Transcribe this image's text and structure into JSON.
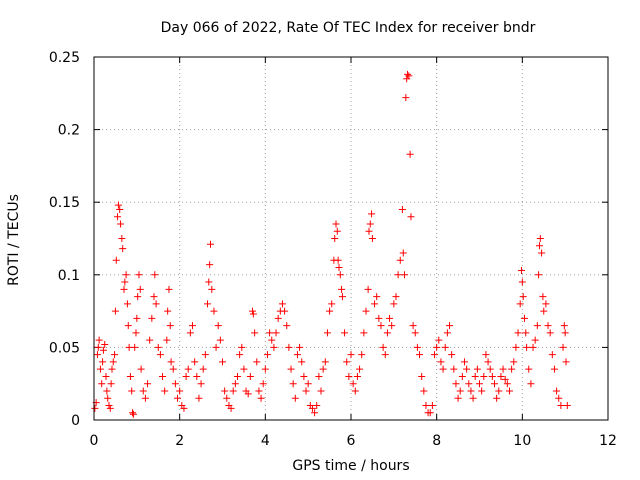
{
  "chart_data": {
    "type": "scatter",
    "title": "Day 066 of 2022, Rate Of TEC Index for receiver bndr",
    "xlabel": "GPS time / hours",
    "ylabel": "ROTI / TECUs",
    "xlim": [
      0,
      12
    ],
    "ylim": [
      0,
      0.25
    ],
    "x_ticks": [
      "0",
      "2",
      "4",
      "6",
      "8",
      "10",
      "12"
    ],
    "y_ticks": [
      "0",
      "0.05",
      "0.1",
      "0.15",
      "0.2",
      "0.25"
    ],
    "grid": true,
    "marker": "+",
    "color": "#ff0000",
    "series": [
      {
        "points": [
          [
            0.02,
            0.008
          ],
          [
            0.05,
            0.012
          ],
          [
            0.08,
            0.045
          ],
          [
            0.1,
            0.05
          ],
          [
            0.12,
            0.055
          ],
          [
            0.15,
            0.035
          ],
          [
            0.18,
            0.025
          ],
          [
            0.2,
            0.04
          ],
          [
            0.22,
            0.048
          ],
          [
            0.25,
            0.052
          ],
          [
            0.28,
            0.03
          ],
          [
            0.3,
            0.02
          ],
          [
            0.32,
            0.015
          ],
          [
            0.35,
            0.01
          ],
          [
            0.38,
            0.008
          ],
          [
            0.4,
            0.025
          ],
          [
            0.42,
            0.035
          ],
          [
            0.45,
            0.04
          ],
          [
            0.48,
            0.045
          ],
          [
            0.5,
            0.075
          ],
          [
            0.52,
            0.11
          ],
          [
            0.55,
            0.14
          ],
          [
            0.57,
            0.148
          ],
          [
            0.6,
            0.145
          ],
          [
            0.62,
            0.135
          ],
          [
            0.65,
            0.125
          ],
          [
            0.67,
            0.118
          ],
          [
            0.7,
            0.09
          ],
          [
            0.72,
            0.095
          ],
          [
            0.75,
            0.1
          ],
          [
            0.78,
            0.08
          ],
          [
            0.8,
            0.065
          ],
          [
            0.82,
            0.05
          ],
          [
            0.85,
            0.03
          ],
          [
            0.88,
            0.02
          ],
          [
            0.9,
            0.005
          ],
          [
            0.92,
            0.004
          ],
          [
            0.95,
            0.05
          ],
          [
            0.98,
            0.06
          ],
          [
            1.0,
            0.07
          ],
          [
            1.02,
            0.085
          ],
          [
            1.05,
            0.1
          ],
          [
            1.08,
            0.09
          ],
          [
            1.1,
            0.035
          ],
          [
            1.15,
            0.02
          ],
          [
            1.2,
            0.015
          ],
          [
            1.25,
            0.025
          ],
          [
            1.3,
            0.055
          ],
          [
            1.35,
            0.07
          ],
          [
            1.4,
            0.085
          ],
          [
            1.42,
            0.1
          ],
          [
            1.45,
            0.08
          ],
          [
            1.5,
            0.05
          ],
          [
            1.55,
            0.045
          ],
          [
            1.6,
            0.03
          ],
          [
            1.65,
            0.02
          ],
          [
            1.7,
            0.055
          ],
          [
            1.72,
            0.075
          ],
          [
            1.75,
            0.09
          ],
          [
            1.78,
            0.065
          ],
          [
            1.8,
            0.04
          ],
          [
            1.85,
            0.035
          ],
          [
            1.9,
            0.025
          ],
          [
            1.95,
            0.015
          ],
          [
            2.0,
            0.02
          ],
          [
            2.05,
            0.01
          ],
          [
            2.1,
            0.008
          ],
          [
            2.15,
            0.03
          ],
          [
            2.2,
            0.035
          ],
          [
            2.25,
            0.06
          ],
          [
            2.3,
            0.065
          ],
          [
            2.35,
            0.04
          ],
          [
            2.4,
            0.03
          ],
          [
            2.45,
            0.015
          ],
          [
            2.5,
            0.025
          ],
          [
            2.55,
            0.035
          ],
          [
            2.6,
            0.045
          ],
          [
            2.65,
            0.08
          ],
          [
            2.68,
            0.095
          ],
          [
            2.7,
            0.107
          ],
          [
            2.72,
            0.121
          ],
          [
            2.75,
            0.09
          ],
          [
            2.8,
            0.075
          ],
          [
            2.85,
            0.05
          ],
          [
            2.9,
            0.065
          ],
          [
            2.95,
            0.055
          ],
          [
            3.0,
            0.04
          ],
          [
            3.05,
            0.02
          ],
          [
            3.1,
            0.015
          ],
          [
            3.15,
            0.01
          ],
          [
            3.2,
            0.008
          ],
          [
            3.25,
            0.02
          ],
          [
            3.3,
            0.025
          ],
          [
            3.35,
            0.03
          ],
          [
            3.4,
            0.045
          ],
          [
            3.45,
            0.05
          ],
          [
            3.5,
            0.035
          ],
          [
            3.55,
            0.02
          ],
          [
            3.6,
            0.018
          ],
          [
            3.65,
            0.03
          ],
          [
            3.7,
            0.075
          ],
          [
            3.72,
            0.073
          ],
          [
            3.75,
            0.06
          ],
          [
            3.8,
            0.04
          ],
          [
            3.85,
            0.02
          ],
          [
            3.9,
            0.015
          ],
          [
            3.95,
            0.025
          ],
          [
            4.0,
            0.035
          ],
          [
            4.05,
            0.045
          ],
          [
            4.1,
            0.06
          ],
          [
            4.15,
            0.055
          ],
          [
            4.2,
            0.05
          ],
          [
            4.25,
            0.06
          ],
          [
            4.3,
            0.07
          ],
          [
            4.35,
            0.075
          ],
          [
            4.4,
            0.08
          ],
          [
            4.45,
            0.075
          ],
          [
            4.5,
            0.065
          ],
          [
            4.55,
            0.05
          ],
          [
            4.6,
            0.035
          ],
          [
            4.65,
            0.025
          ],
          [
            4.7,
            0.015
          ],
          [
            4.75,
            0.045
          ],
          [
            4.8,
            0.05
          ],
          [
            4.85,
            0.04
          ],
          [
            4.9,
            0.03
          ],
          [
            4.95,
            0.02
          ],
          [
            5.0,
            0.025
          ],
          [
            5.05,
            0.01
          ],
          [
            5.1,
            0.008
          ],
          [
            5.15,
            0.005
          ],
          [
            5.2,
            0.01
          ],
          [
            5.25,
            0.03
          ],
          [
            5.3,
            0.02
          ],
          [
            5.35,
            0.035
          ],
          [
            5.4,
            0.04
          ],
          [
            5.45,
            0.06
          ],
          [
            5.5,
            0.075
          ],
          [
            5.55,
            0.08
          ],
          [
            5.6,
            0.11
          ],
          [
            5.62,
            0.125
          ],
          [
            5.65,
            0.135
          ],
          [
            5.68,
            0.13
          ],
          [
            5.7,
            0.11
          ],
          [
            5.72,
            0.105
          ],
          [
            5.75,
            0.1
          ],
          [
            5.78,
            0.09
          ],
          [
            5.8,
            0.085
          ],
          [
            5.85,
            0.06
          ],
          [
            5.9,
            0.04
          ],
          [
            5.95,
            0.03
          ],
          [
            6.0,
            0.045
          ],
          [
            6.05,
            0.025
          ],
          [
            6.1,
            0.02
          ],
          [
            6.15,
            0.03
          ],
          [
            6.2,
            0.035
          ],
          [
            6.25,
            0.045
          ],
          [
            6.3,
            0.06
          ],
          [
            6.35,
            0.075
          ],
          [
            6.4,
            0.09
          ],
          [
            6.42,
            0.13
          ],
          [
            6.45,
            0.135
          ],
          [
            6.48,
            0.142
          ],
          [
            6.5,
            0.125
          ],
          [
            6.55,
            0.08
          ],
          [
            6.6,
            0.085
          ],
          [
            6.65,
            0.07
          ],
          [
            6.7,
            0.065
          ],
          [
            6.75,
            0.05
          ],
          [
            6.8,
            0.045
          ],
          [
            6.85,
            0.06
          ],
          [
            6.9,
            0.07
          ],
          [
            6.95,
            0.065
          ],
          [
            7.0,
            0.08
          ],
          [
            7.05,
            0.085
          ],
          [
            7.1,
            0.1
          ],
          [
            7.15,
            0.11
          ],
          [
            7.2,
            0.145
          ],
          [
            7.22,
            0.115
          ],
          [
            7.25,
            0.1
          ],
          [
            7.28,
            0.222
          ],
          [
            7.3,
            0.235
          ],
          [
            7.32,
            0.238
          ],
          [
            7.35,
            0.237
          ],
          [
            7.38,
            0.183
          ],
          [
            7.4,
            0.14
          ],
          [
            7.45,
            0.065
          ],
          [
            7.5,
            0.06
          ],
          [
            7.55,
            0.05
          ],
          [
            7.6,
            0.045
          ],
          [
            7.65,
            0.03
          ],
          [
            7.7,
            0.02
          ],
          [
            7.75,
            0.01
          ],
          [
            7.8,
            0.005
          ],
          [
            7.85,
            0.005
          ],
          [
            7.9,
            0.01
          ],
          [
            7.95,
            0.045
          ],
          [
            8.0,
            0.05
          ],
          [
            8.05,
            0.055
          ],
          [
            8.1,
            0.04
          ],
          [
            8.15,
            0.035
          ],
          [
            8.2,
            0.05
          ],
          [
            8.25,
            0.06
          ],
          [
            8.3,
            0.065
          ],
          [
            8.35,
            0.045
          ],
          [
            8.4,
            0.035
          ],
          [
            8.45,
            0.025
          ],
          [
            8.5,
            0.015
          ],
          [
            8.55,
            0.02
          ],
          [
            8.6,
            0.03
          ],
          [
            8.65,
            0.04
          ],
          [
            8.7,
            0.035
          ],
          [
            8.75,
            0.025
          ],
          [
            8.8,
            0.02
          ],
          [
            8.85,
            0.015
          ],
          [
            8.9,
            0.03
          ],
          [
            8.95,
            0.035
          ],
          [
            9.0,
            0.025
          ],
          [
            9.05,
            0.02
          ],
          [
            9.1,
            0.03
          ],
          [
            9.15,
            0.045
          ],
          [
            9.2,
            0.04
          ],
          [
            9.25,
            0.035
          ],
          [
            9.3,
            0.03
          ],
          [
            9.35,
            0.025
          ],
          [
            9.4,
            0.015
          ],
          [
            9.45,
            0.02
          ],
          [
            9.5,
            0.03
          ],
          [
            9.55,
            0.035
          ],
          [
            9.6,
            0.028
          ],
          [
            9.65,
            0.025
          ],
          [
            9.7,
            0.02
          ],
          [
            9.75,
            0.035
          ],
          [
            9.8,
            0.04
          ],
          [
            9.85,
            0.05
          ],
          [
            9.9,
            0.06
          ],
          [
            9.95,
            0.08
          ],
          [
            9.98,
            0.103
          ],
          [
            10.0,
            0.095
          ],
          [
            10.02,
            0.085
          ],
          [
            10.05,
            0.07
          ],
          [
            10.08,
            0.06
          ],
          [
            10.1,
            0.05
          ],
          [
            10.15,
            0.035
          ],
          [
            10.2,
            0.025
          ],
          [
            10.25,
            0.05
          ],
          [
            10.3,
            0.055
          ],
          [
            10.35,
            0.065
          ],
          [
            10.38,
            0.1
          ],
          [
            10.4,
            0.12
          ],
          [
            10.42,
            0.125
          ],
          [
            10.45,
            0.115
          ],
          [
            10.48,
            0.085
          ],
          [
            10.5,
            0.075
          ],
          [
            10.55,
            0.08
          ],
          [
            10.6,
            0.065
          ],
          [
            10.65,
            0.06
          ],
          [
            10.7,
            0.045
          ],
          [
            10.75,
            0.035
          ],
          [
            10.8,
            0.02
          ],
          [
            10.85,
            0.015
          ],
          [
            10.9,
            0.01
          ],
          [
            10.95,
            0.05
          ],
          [
            10.98,
            0.065
          ],
          [
            11.0,
            0.06
          ],
          [
            11.02,
            0.04
          ],
          [
            11.05,
            0.01
          ]
        ]
      }
    ]
  }
}
